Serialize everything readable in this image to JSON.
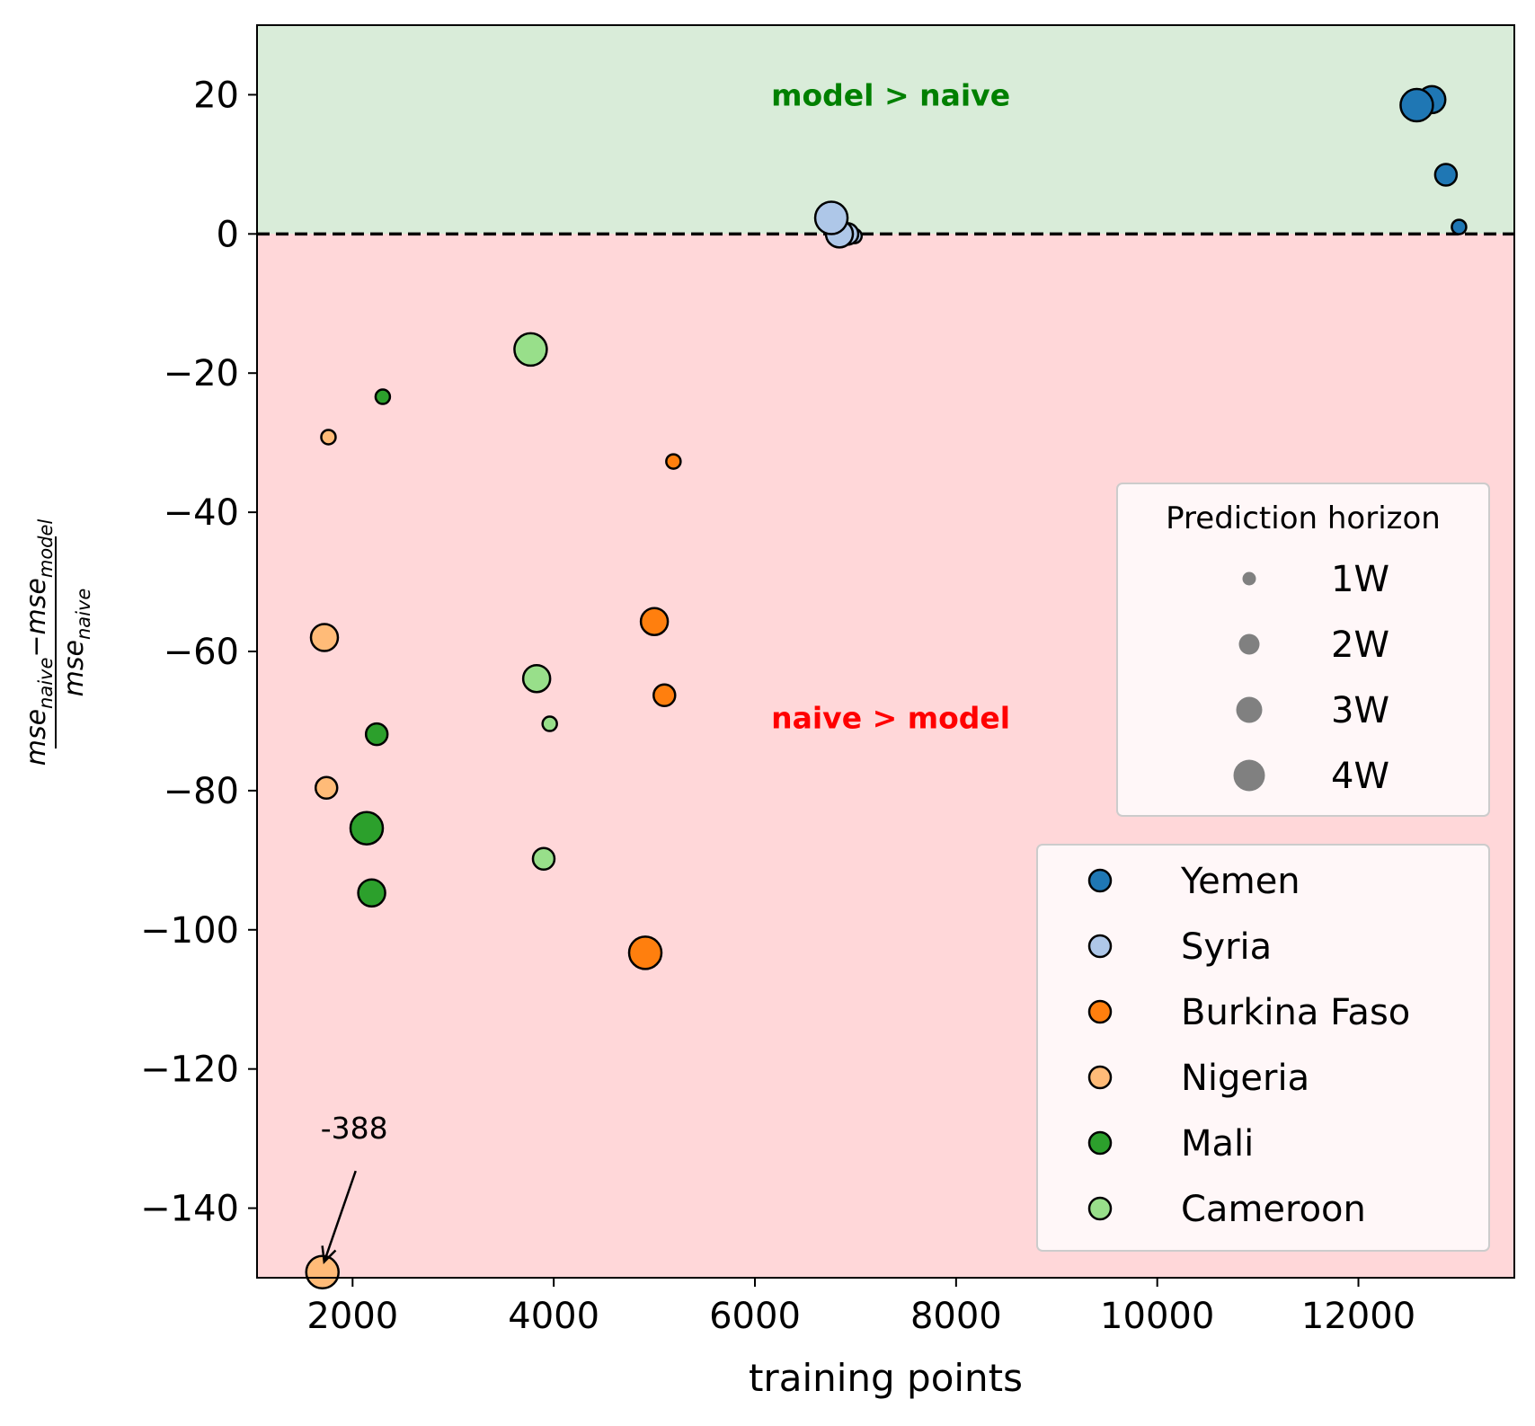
{
  "chart_data": {
    "type": "scatter",
    "xlabel": "training points",
    "ylabel": {
      "num_a": "mse",
      "num_a_sub": "naive",
      "minus": "−",
      "num_b": "mse",
      "num_b_sub": "model",
      "den": "mse",
      "den_sub": "naive"
    },
    "xlim": [
      1050,
      13550
    ],
    "ylim": [
      -150,
      30
    ],
    "x_ticks": [
      2000,
      4000,
      6000,
      8000,
      10000,
      12000
    ],
    "y_ticks": [
      20,
      0,
      -20,
      -40,
      -60,
      -80,
      -100,
      -120,
      -140
    ],
    "grid": false,
    "regions": [
      {
        "label": "model > naive",
        "y_from": 0,
        "y_to": 30,
        "fill": "#d9ecd9",
        "text_color": "#008000",
        "label_x": 7350,
        "label_y": 20
      },
      {
        "label": "naive > model",
        "y_from": -150,
        "y_to": 0,
        "fill": "#ffd7d9",
        "text_color": "#ff0000",
        "label_x": 7350,
        "label_y": -69.5
      }
    ],
    "reference_line": {
      "y": 0,
      "style": "dashed",
      "color": "#000000"
    },
    "annotation": {
      "text": "-388",
      "text_x": 1700,
      "text_y": -130,
      "arrow_to_x": 1700,
      "arrow_to_y": -149
    },
    "size_legend": {
      "title": "Prediction horizon",
      "placement": "right",
      "items": [
        {
          "label": "1W",
          "horizon": 1
        },
        {
          "label": "2W",
          "horizon": 2
        },
        {
          "label": "3W",
          "horizon": 3
        },
        {
          "label": "4W",
          "horizon": 4
        }
      ]
    },
    "series": [
      {
        "name": "Yemen",
        "color": "#1f77b4",
        "points": [
          {
            "x": 13000,
            "y": 1,
            "h": 1
          },
          {
            "x": 12870,
            "y": 8.5,
            "h": 2
          },
          {
            "x": 12730,
            "y": 19.3,
            "h": 3
          },
          {
            "x": 12580,
            "y": 18.5,
            "h": 4
          }
        ]
      },
      {
        "name": "Syria",
        "color": "#aec7e8",
        "points": [
          {
            "x": 6990,
            "y": -0.3,
            "h": 1
          },
          {
            "x": 6920,
            "y": 0,
            "h": 2
          },
          {
            "x": 6840,
            "y": 0,
            "h": 3
          },
          {
            "x": 6760,
            "y": 2.3,
            "h": 4
          }
        ]
      },
      {
        "name": "Burkina Faso",
        "color": "#ff7f0e",
        "points": [
          {
            "x": 5190,
            "y": -32.7,
            "h": 1
          },
          {
            "x": 5100,
            "y": -66.3,
            "h": 2
          },
          {
            "x": 5000,
            "y": -55.7,
            "h": 3
          },
          {
            "x": 4910,
            "y": -103.3,
            "h": 4
          }
        ]
      },
      {
        "name": "Nigeria",
        "color": "#ffbb78",
        "points": [
          {
            "x": 1760,
            "y": -29.2,
            "h": 1
          },
          {
            "x": 1740,
            "y": -79.6,
            "h": 2
          },
          {
            "x": 1720,
            "y": -58.0,
            "h": 3
          },
          {
            "x": 1700,
            "y": -149.2,
            "h": 4
          }
        ]
      },
      {
        "name": "Mali",
        "color": "#2ca02c",
        "points": [
          {
            "x": 2300,
            "y": -23.4,
            "h": 1
          },
          {
            "x": 2240,
            "y": -71.9,
            "h": 2
          },
          {
            "x": 2190,
            "y": -94.7,
            "h": 3
          },
          {
            "x": 2140,
            "y": -85.4,
            "h": 4
          }
        ]
      },
      {
        "name": "Cameroon",
        "color": "#98df8a",
        "points": [
          {
            "x": 3960,
            "y": -70.4,
            "h": 1
          },
          {
            "x": 3900,
            "y": -89.8,
            "h": 2
          },
          {
            "x": 3830,
            "y": -63.9,
            "h": 3
          },
          {
            "x": 3770,
            "y": -16.6,
            "h": 4
          }
        ]
      }
    ]
  }
}
